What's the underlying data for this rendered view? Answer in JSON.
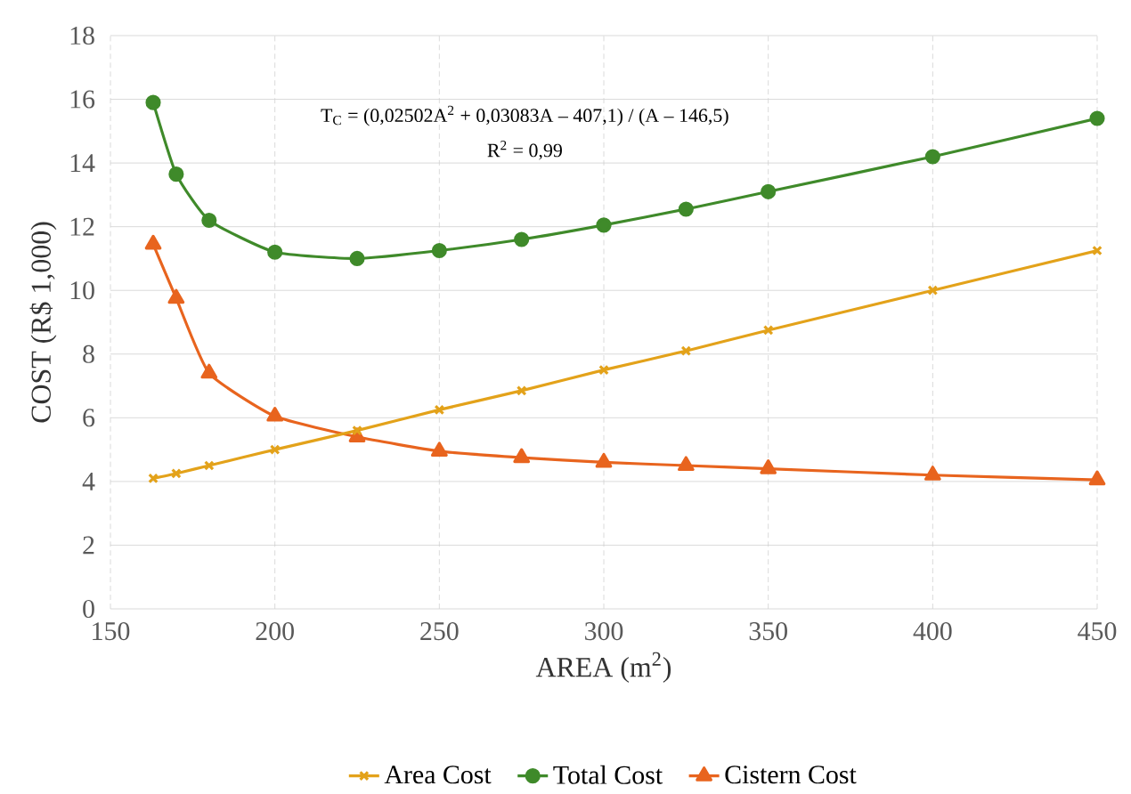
{
  "chart_data": {
    "type": "line",
    "xlabel": "AREA  (m$^{2}$)",
    "ylabel": "COST (R$ 1,000)",
    "x": [
      163,
      170,
      180,
      200,
      225,
      250,
      275,
      300,
      325,
      350,
      400,
      450
    ],
    "series": [
      {
        "name": "Area Cost",
        "color": "#e3a21a",
        "marker": "cross",
        "values": [
          4.1,
          4.25,
          4.5,
          5.0,
          5.6,
          6.25,
          6.85,
          7.5,
          8.1,
          8.75,
          10.0,
          11.25
        ]
      },
      {
        "name": "Total Cost",
        "color": "#3f8a2a",
        "marker": "circle",
        "values": [
          15.9,
          13.65,
          12.2,
          11.2,
          11.0,
          11.25,
          11.6,
          12.05,
          12.55,
          13.1,
          14.2,
          15.4
        ]
      },
      {
        "name": "Cistern Cost",
        "color": "#e8641e",
        "marker": "triangle",
        "values": [
          11.45,
          9.75,
          7.4,
          6.05,
          5.4,
          4.95,
          4.75,
          4.6,
          4.5,
          4.4,
          4.2,
          4.05
        ]
      }
    ],
    "xlim": [
      150,
      450
    ],
    "xticks": [
      150,
      200,
      250,
      300,
      350,
      400,
      450
    ],
    "ylim": [
      0,
      18
    ],
    "yticks": [
      0,
      2,
      4,
      6,
      8,
      10,
      12,
      14,
      16,
      18
    ],
    "grid": true,
    "legend": "bottom",
    "annotations": [
      "T$_{C}$ = (0,02502A$^{2}$ + 0,03083A – 407,1) / (A – 146,5)",
      "R$^{2}$ = 0,99"
    ]
  }
}
